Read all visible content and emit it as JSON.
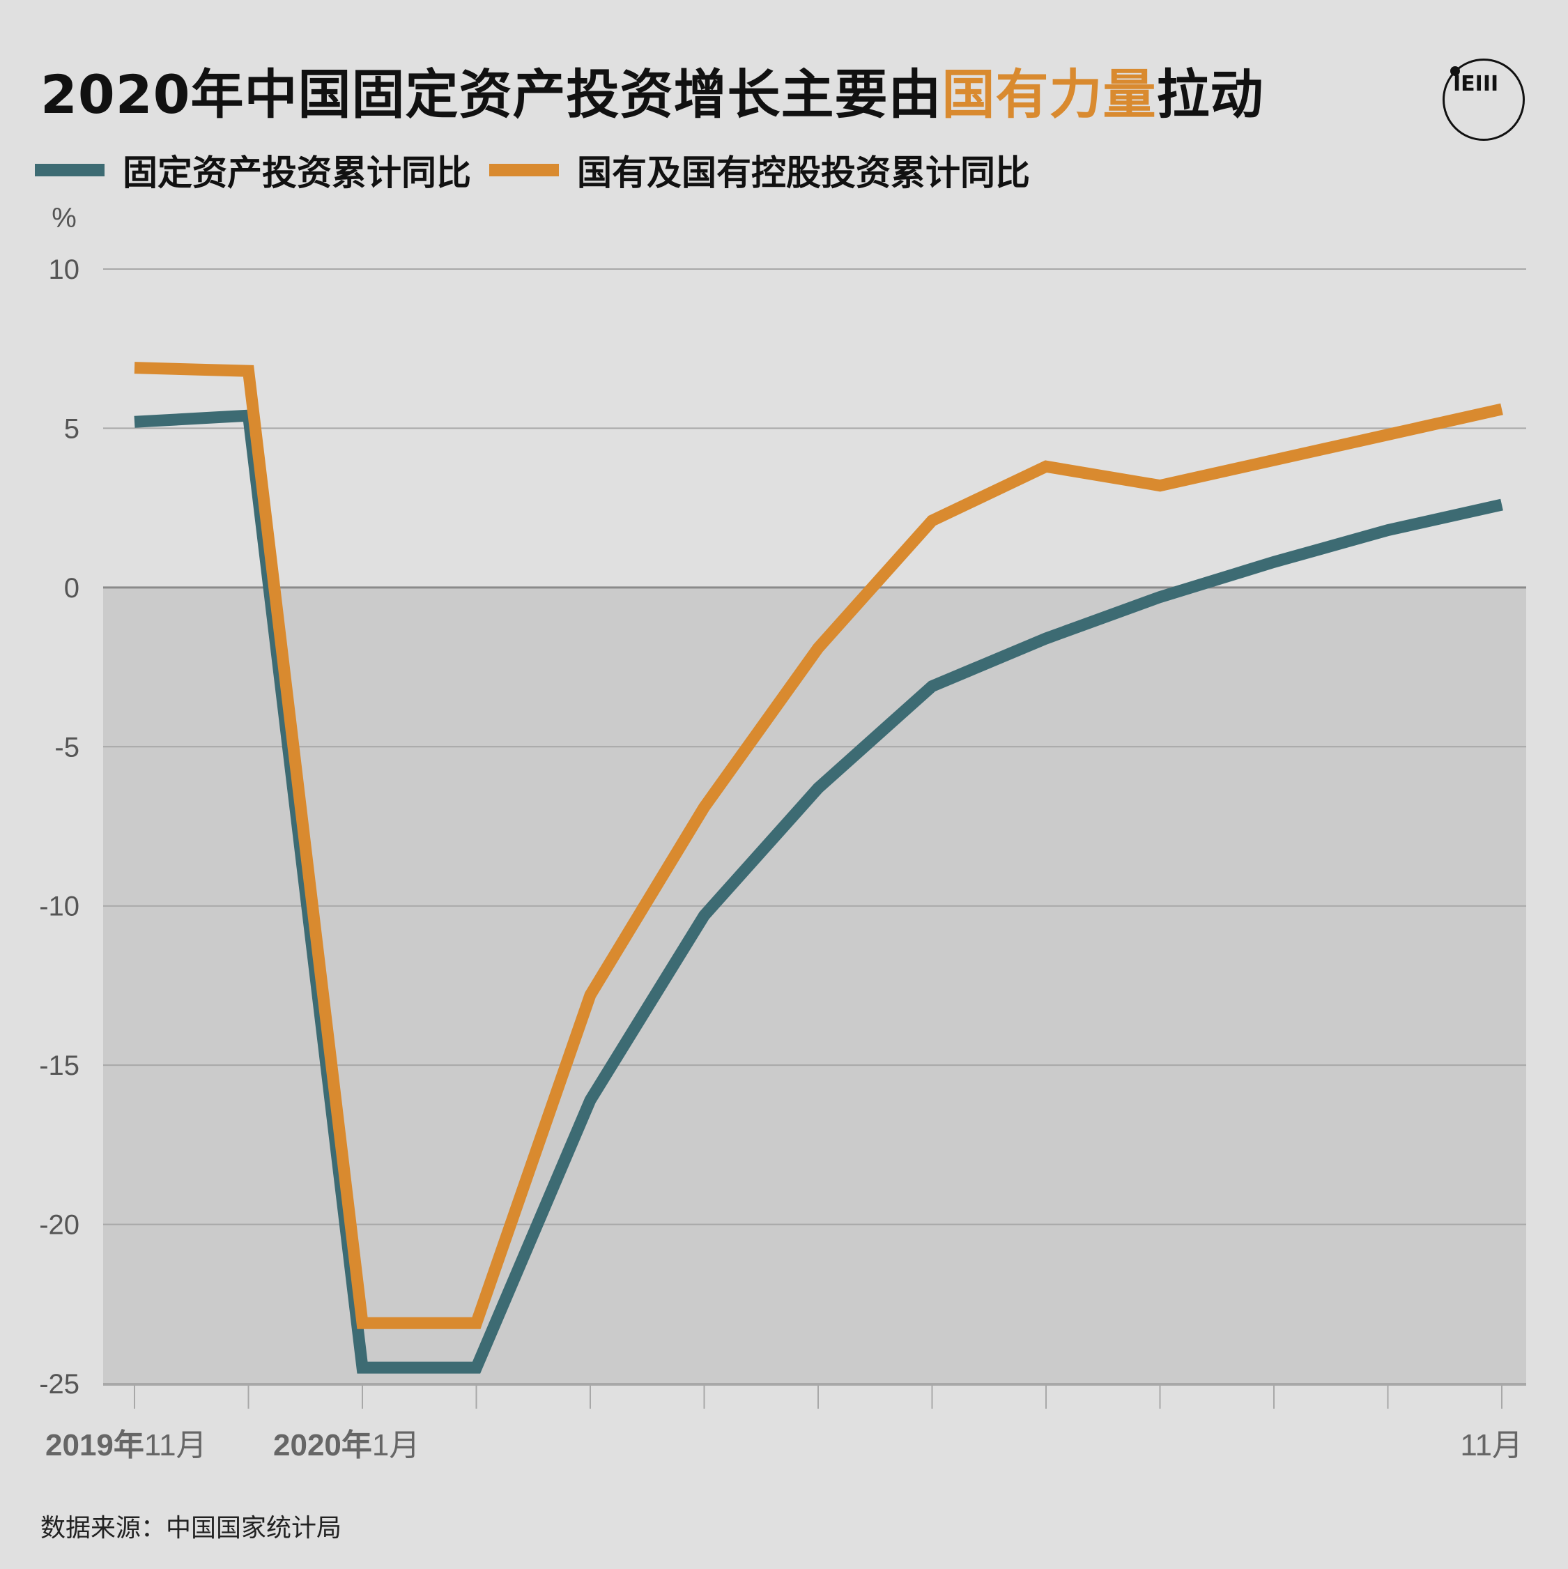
{
  "title": {
    "part1": "2020年中国固定资产投资增长主要由",
    "highlight": "国有力量",
    "part2": "拉动"
  },
  "logo": {
    "text": "IEIII"
  },
  "source": "数据来源：中国国家统计局",
  "colors": {
    "background": "#e0e0e0",
    "negative_band": "#cbcbcb",
    "series_teal": "#3d6b73",
    "series_orange": "#d98a2f",
    "gridline": "#a8a8a8",
    "zero_line": "#8a8a8a"
  },
  "chart_data": {
    "type": "line",
    "title": "2020年中国固定资产投资增长主要由国有力量拉动",
    "ylabel": "%",
    "ylim": [
      -25,
      10
    ],
    "yticks": [
      10,
      5,
      0,
      -5,
      -10,
      -15,
      -20,
      -25
    ],
    "grid": true,
    "legend_position": "top-left",
    "x": [
      "2019年11月",
      "2019年12月",
      "2020年1月",
      "2020年2月",
      "2020年3月",
      "2020年4月",
      "2020年5月",
      "2020年6月",
      "2020年7月",
      "2020年8月",
      "2020年9月",
      "2020年10月",
      "2020年11月"
    ],
    "x_tick_labels": [
      {
        "index": 0,
        "bold": "2019年",
        "normal": "11月"
      },
      {
        "index": 2,
        "bold": "2020年",
        "normal": "1月"
      },
      {
        "index": 12,
        "bold": "",
        "normal": "11月"
      }
    ],
    "series": [
      {
        "name": "固定资产投资累计同比",
        "color": "#3d6b73",
        "values": [
          5.2,
          5.4,
          -24.5,
          -24.5,
          -16.1,
          -10.3,
          -6.3,
          -3.1,
          -1.6,
          -0.3,
          0.8,
          1.8,
          2.6
        ]
      },
      {
        "name": "国有及国有控股投资累计同比",
        "color": "#d98a2f",
        "values": [
          6.9,
          6.8,
          -23.1,
          -23.1,
          -12.8,
          -6.9,
          -1.9,
          2.1,
          3.8,
          3.2,
          4.0,
          4.8,
          5.6
        ]
      }
    ]
  }
}
